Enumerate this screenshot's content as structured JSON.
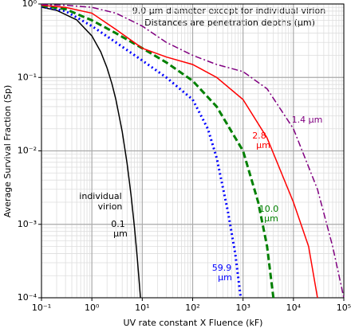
{
  "chart_data": {
    "type": "line",
    "annotations": [
      "9.0 μm diameter except for individual virion",
      "Distances are penetration depths (μm)"
    ],
    "xlabel": "UV rate constant X Fluence (kF)",
    "ylabel": "Average Survival Fraction (Sp)",
    "xscale": "log",
    "yscale": "log",
    "grid": true,
    "minor_grid": true,
    "xlim": [
      0.1,
      100000
    ],
    "ylim": [
      0.0001,
      1
    ],
    "xticks": [
      {
        "value": 0.1,
        "label": "10⁻¹"
      },
      {
        "value": 1,
        "label": "10⁰"
      },
      {
        "value": 10,
        "label": "10¹"
      },
      {
        "value": 100,
        "label": "10²"
      },
      {
        "value": 1000,
        "label": "10³"
      },
      {
        "value": 10000,
        "label": "10⁴"
      },
      {
        "value": 100000,
        "label": "10⁵"
      }
    ],
    "yticks": [
      {
        "value": 0.0001,
        "label": "10⁻⁴"
      },
      {
        "value": 0.001,
        "label": "10⁻³"
      },
      {
        "value": 0.01,
        "label": "10⁻²"
      },
      {
        "value": 0.1,
        "label": "10⁻¹"
      },
      {
        "value": 1,
        "label": "10⁰"
      }
    ],
    "series": [
      {
        "label": [
          "individual",
          "virion",
          "0.1",
          "μm"
        ],
        "color": "#000000",
        "style": "solid",
        "x": [
          0.1,
          0.2,
          0.5,
          1,
          1.5,
          2,
          2.5,
          3,
          4,
          5,
          6,
          7,
          8,
          9.21
        ],
        "values": [
          0.905,
          0.819,
          0.607,
          0.368,
          0.223,
          0.135,
          0.082,
          0.0498,
          0.0183,
          0.00674,
          0.00248,
          0.000912,
          0.000335,
          0.0001
        ]
      },
      {
        "label": [
          "59.9",
          "μm"
        ],
        "color": "#0000ff",
        "style": "dotted",
        "x": [
          0.1,
          0.3,
          1,
          3,
          10,
          30,
          100,
          200,
          300,
          500,
          700,
          900
        ],
        "values": [
          0.93,
          0.8,
          0.5,
          0.3,
          0.17,
          0.1,
          0.05,
          0.02,
          0.008,
          0.0015,
          0.0004,
          0.0001
        ]
      },
      {
        "label": [
          "10.0",
          "μm"
        ],
        "color": "#008000",
        "style": "dashed",
        "x": [
          0.1,
          0.3,
          1,
          3,
          10,
          30,
          100,
          300,
          1000,
          2000,
          3000,
          4000
        ],
        "values": [
          0.95,
          0.85,
          0.6,
          0.4,
          0.25,
          0.16,
          0.09,
          0.04,
          0.01,
          0.002,
          0.0005,
          0.0001
        ]
      },
      {
        "label": [
          "2.8",
          "μm"
        ],
        "color": "#ff0000",
        "style": "solid",
        "x": [
          0.1,
          0.3,
          1,
          3,
          10,
          30,
          100,
          300,
          1000,
          3000,
          10000,
          20000,
          30000
        ],
        "values": [
          0.96,
          0.9,
          0.75,
          0.45,
          0.25,
          0.19,
          0.15,
          0.1,
          0.05,
          0.015,
          0.002,
          0.0005,
          0.0001
        ]
      },
      {
        "label": [
          "1.4 μm"
        ],
        "color": "#800080",
        "style": "dashdot",
        "x": [
          0.1,
          0.3,
          1,
          3,
          10,
          30,
          100,
          300,
          1000,
          3000,
          10000,
          30000,
          60000,
          100000
        ],
        "values": [
          0.98,
          0.96,
          0.9,
          0.75,
          0.5,
          0.3,
          0.2,
          0.15,
          0.12,
          0.07,
          0.02,
          0.003,
          0.0005,
          0.0001
        ]
      }
    ]
  }
}
